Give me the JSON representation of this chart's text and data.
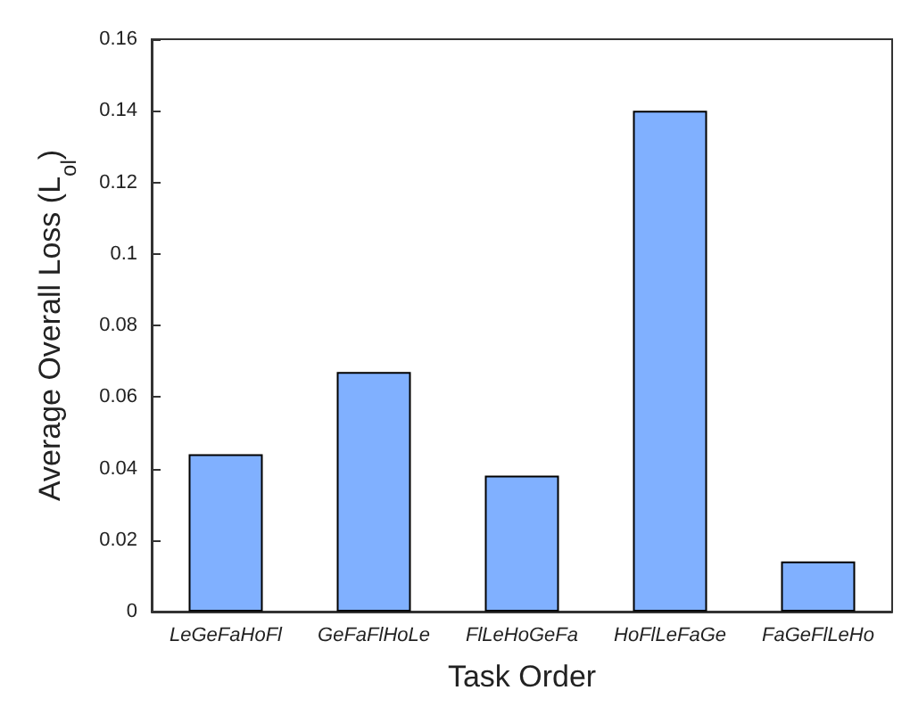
{
  "chart_data": {
    "type": "bar",
    "xlabel": "Task Order",
    "ylabel": "Average Overall Loss (L$_{ol}$)",
    "categories": [
      "LeGeFaHoFl",
      "GeFaFlHoLe",
      "FlLeHoGeFa",
      "HoFlLeFaGe",
      "FaGeFlLeHo"
    ],
    "values": [
      0.044,
      0.067,
      0.038,
      0.14,
      0.014
    ],
    "color": "#80b0ff",
    "ylim": [
      0,
      0.16
    ],
    "yticks": [
      0,
      0.02,
      0.04,
      0.06,
      0.08,
      0.1,
      0.12,
      0.14,
      0.16
    ],
    "grid": false
  }
}
